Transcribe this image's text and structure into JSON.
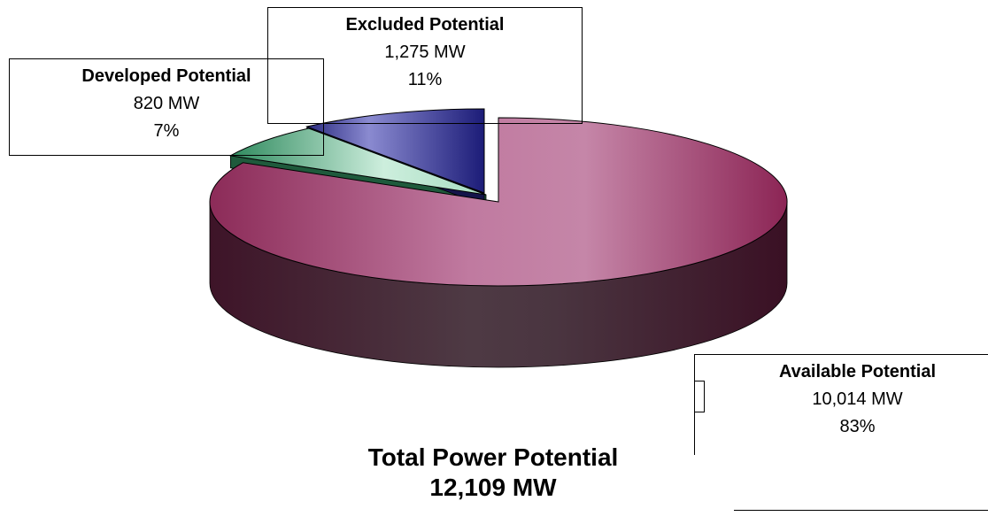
{
  "chart_data": {
    "type": "pie",
    "style": "3d-exploded",
    "title": "Total Power Potential",
    "subtitle": "12,109 MW",
    "slices": [
      {
        "name": "Available Potential",
        "value": 10014,
        "value_label": "10,014 MW",
        "percent": "83%",
        "color": "#a0406e"
      },
      {
        "name": "Developed Potential",
        "value": 820,
        "value_label": "820 MW",
        "percent": "7%",
        "color": "#7fcfa6"
      },
      {
        "name": "Excluded Potential",
        "value": 1275,
        "value_label": "1,275 MW",
        "percent": "11%",
        "color": "#3c3c9c"
      }
    ],
    "legend": "none"
  }
}
